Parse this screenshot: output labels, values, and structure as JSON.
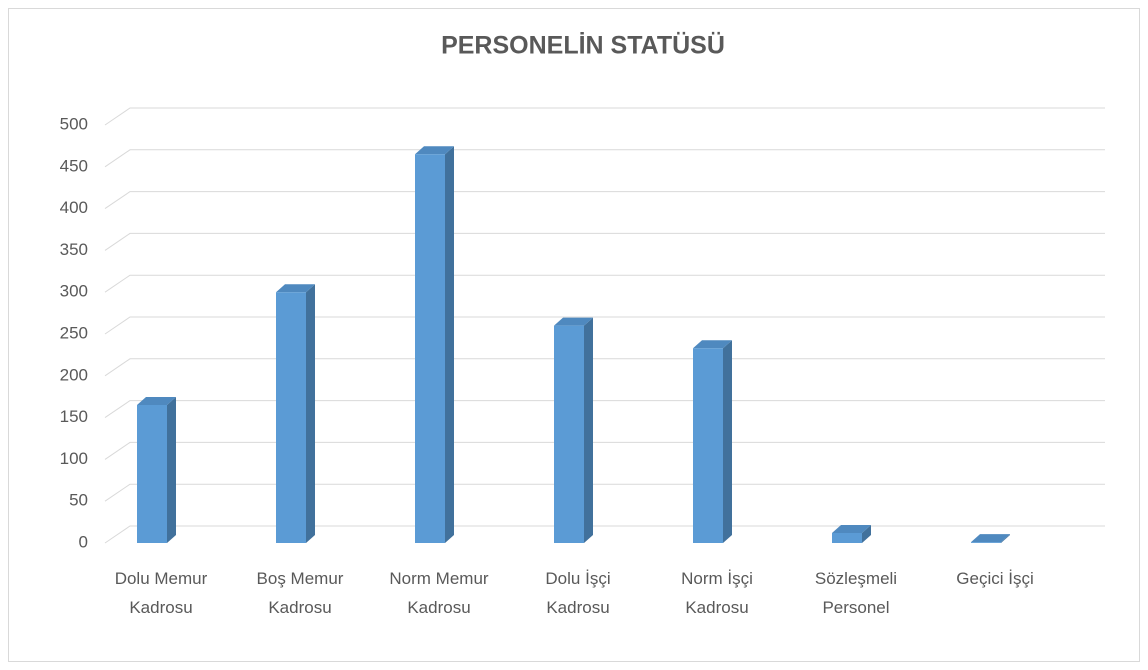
{
  "chart_data": {
    "type": "bar3d",
    "title": "PERSONELİN STATÜSÜ",
    "categories": [
      "Dolu Memur Kadrosu",
      "Boş Memur Kadrosu",
      "Norm Memur Kadrosu",
      "Dolu İşçi Kadrosu",
      "Norm İşçi Kadrosu",
      "Sözleşmeli Personel",
      "Geçici İşçi"
    ],
    "values": [
      165,
      300,
      465,
      260,
      233,
      12,
      1
    ],
    "color": "#5b9bd5",
    "ylim": [
      0,
      500
    ],
    "yticks": [
      0,
      50,
      100,
      150,
      200,
      250,
      300,
      350,
      400,
      450,
      500
    ],
    "grid": true
  }
}
